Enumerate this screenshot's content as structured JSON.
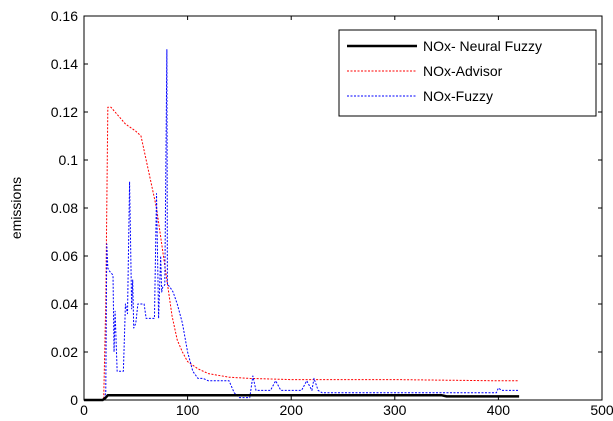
{
  "chart_data": {
    "type": "line",
    "title": "",
    "xlabel": "",
    "ylabel": "emissions",
    "xlim": [
      0,
      500
    ],
    "ylim": [
      0,
      0.16
    ],
    "xticks": [
      0,
      100,
      200,
      300,
      400,
      500
    ],
    "yticks": [
      0,
      0.02,
      0.04,
      0.06,
      0.08,
      0.1,
      0.12,
      0.14,
      0.16
    ],
    "xtick_labels": [
      "0",
      "100",
      "200",
      "300",
      "400",
      "500"
    ],
    "ytick_labels": [
      "0",
      "0.02",
      "0.04",
      "0.06",
      "0.08",
      "0.1",
      "0.12",
      "0.14",
      "0.16"
    ],
    "grid": false,
    "legend_position": "top-right",
    "series": [
      {
        "name": "NOx- Neural Fuzzy",
        "color": "#000000",
        "style": "solid-thick",
        "x": [
          0,
          18,
          21,
          23,
          60,
          120,
          200,
          345,
          350,
          420
        ],
        "y": [
          0,
          0,
          0.001,
          0.002,
          0.002,
          0.002,
          0.002,
          0.002,
          0.0015,
          0.0015
        ]
      },
      {
        "name": "NOx-Advisor",
        "color": "#ff0000",
        "style": "dotted",
        "x": [
          0,
          19,
          21,
          23,
          26,
          30,
          40,
          50,
          55,
          60,
          65,
          70,
          75,
          80,
          85,
          90,
          95,
          100,
          110,
          120,
          140,
          160,
          200,
          300,
          400,
          420
        ],
        "y": [
          0,
          0,
          0.04,
          0.122,
          0.122,
          0.12,
          0.115,
          0.112,
          0.11,
          0.1,
          0.09,
          0.08,
          0.065,
          0.05,
          0.035,
          0.025,
          0.02,
          0.016,
          0.013,
          0.011,
          0.0095,
          0.009,
          0.0085,
          0.0085,
          0.008,
          0.008
        ]
      },
      {
        "name": "NOx-Fuzzy",
        "color": "#0000ff",
        "style": "dotted",
        "x": [
          0,
          19,
          21,
          22,
          23,
          24,
          26,
          28,
          29,
          30,
          32,
          34,
          36,
          38,
          40,
          42,
          44,
          46,
          47,
          48,
          50,
          52,
          54,
          56,
          58,
          60,
          62,
          64,
          66,
          68,
          70,
          72,
          74,
          75,
          76,
          78,
          80,
          80.5,
          81,
          83,
          86,
          90,
          95,
          100,
          105,
          110,
          115,
          120,
          130,
          140,
          145,
          150,
          155,
          160,
          163,
          166,
          170,
          175,
          180,
          185,
          190,
          195,
          200,
          205,
          210,
          215,
          220,
          222,
          226,
          230,
          240,
          260,
          300,
          350,
          380,
          398,
          400,
          403,
          420
        ],
        "y": [
          0,
          0,
          0.003,
          0.065,
          0.055,
          0.054,
          0.053,
          0.052,
          0.02,
          0.037,
          0.012,
          0.012,
          0.012,
          0.012,
          0.04,
          0.036,
          0.091,
          0.038,
          0.05,
          0.03,
          0.032,
          0.04,
          0.04,
          0.04,
          0.04,
          0.034,
          0.034,
          0.034,
          0.034,
          0.034,
          0.086,
          0.034,
          0.06,
          0.045,
          0.047,
          0.048,
          0.146,
          0.048,
          0.048,
          0.047,
          0.045,
          0.04,
          0.032,
          0.02,
          0.012,
          0.009,
          0.009,
          0.008,
          0.008,
          0.008,
          0.003,
          0.001,
          0.001,
          0.001,
          0.01,
          0.004,
          0.004,
          0.004,
          0.004,
          0.008,
          0.004,
          0.004,
          0.004,
          0.004,
          0.004,
          0.008,
          0.004,
          0.009,
          0.004,
          0.003,
          0.003,
          0.003,
          0.003,
          0.003,
          0.003,
          0.003,
          0.005,
          0.004,
          0.004
        ]
      }
    ]
  }
}
